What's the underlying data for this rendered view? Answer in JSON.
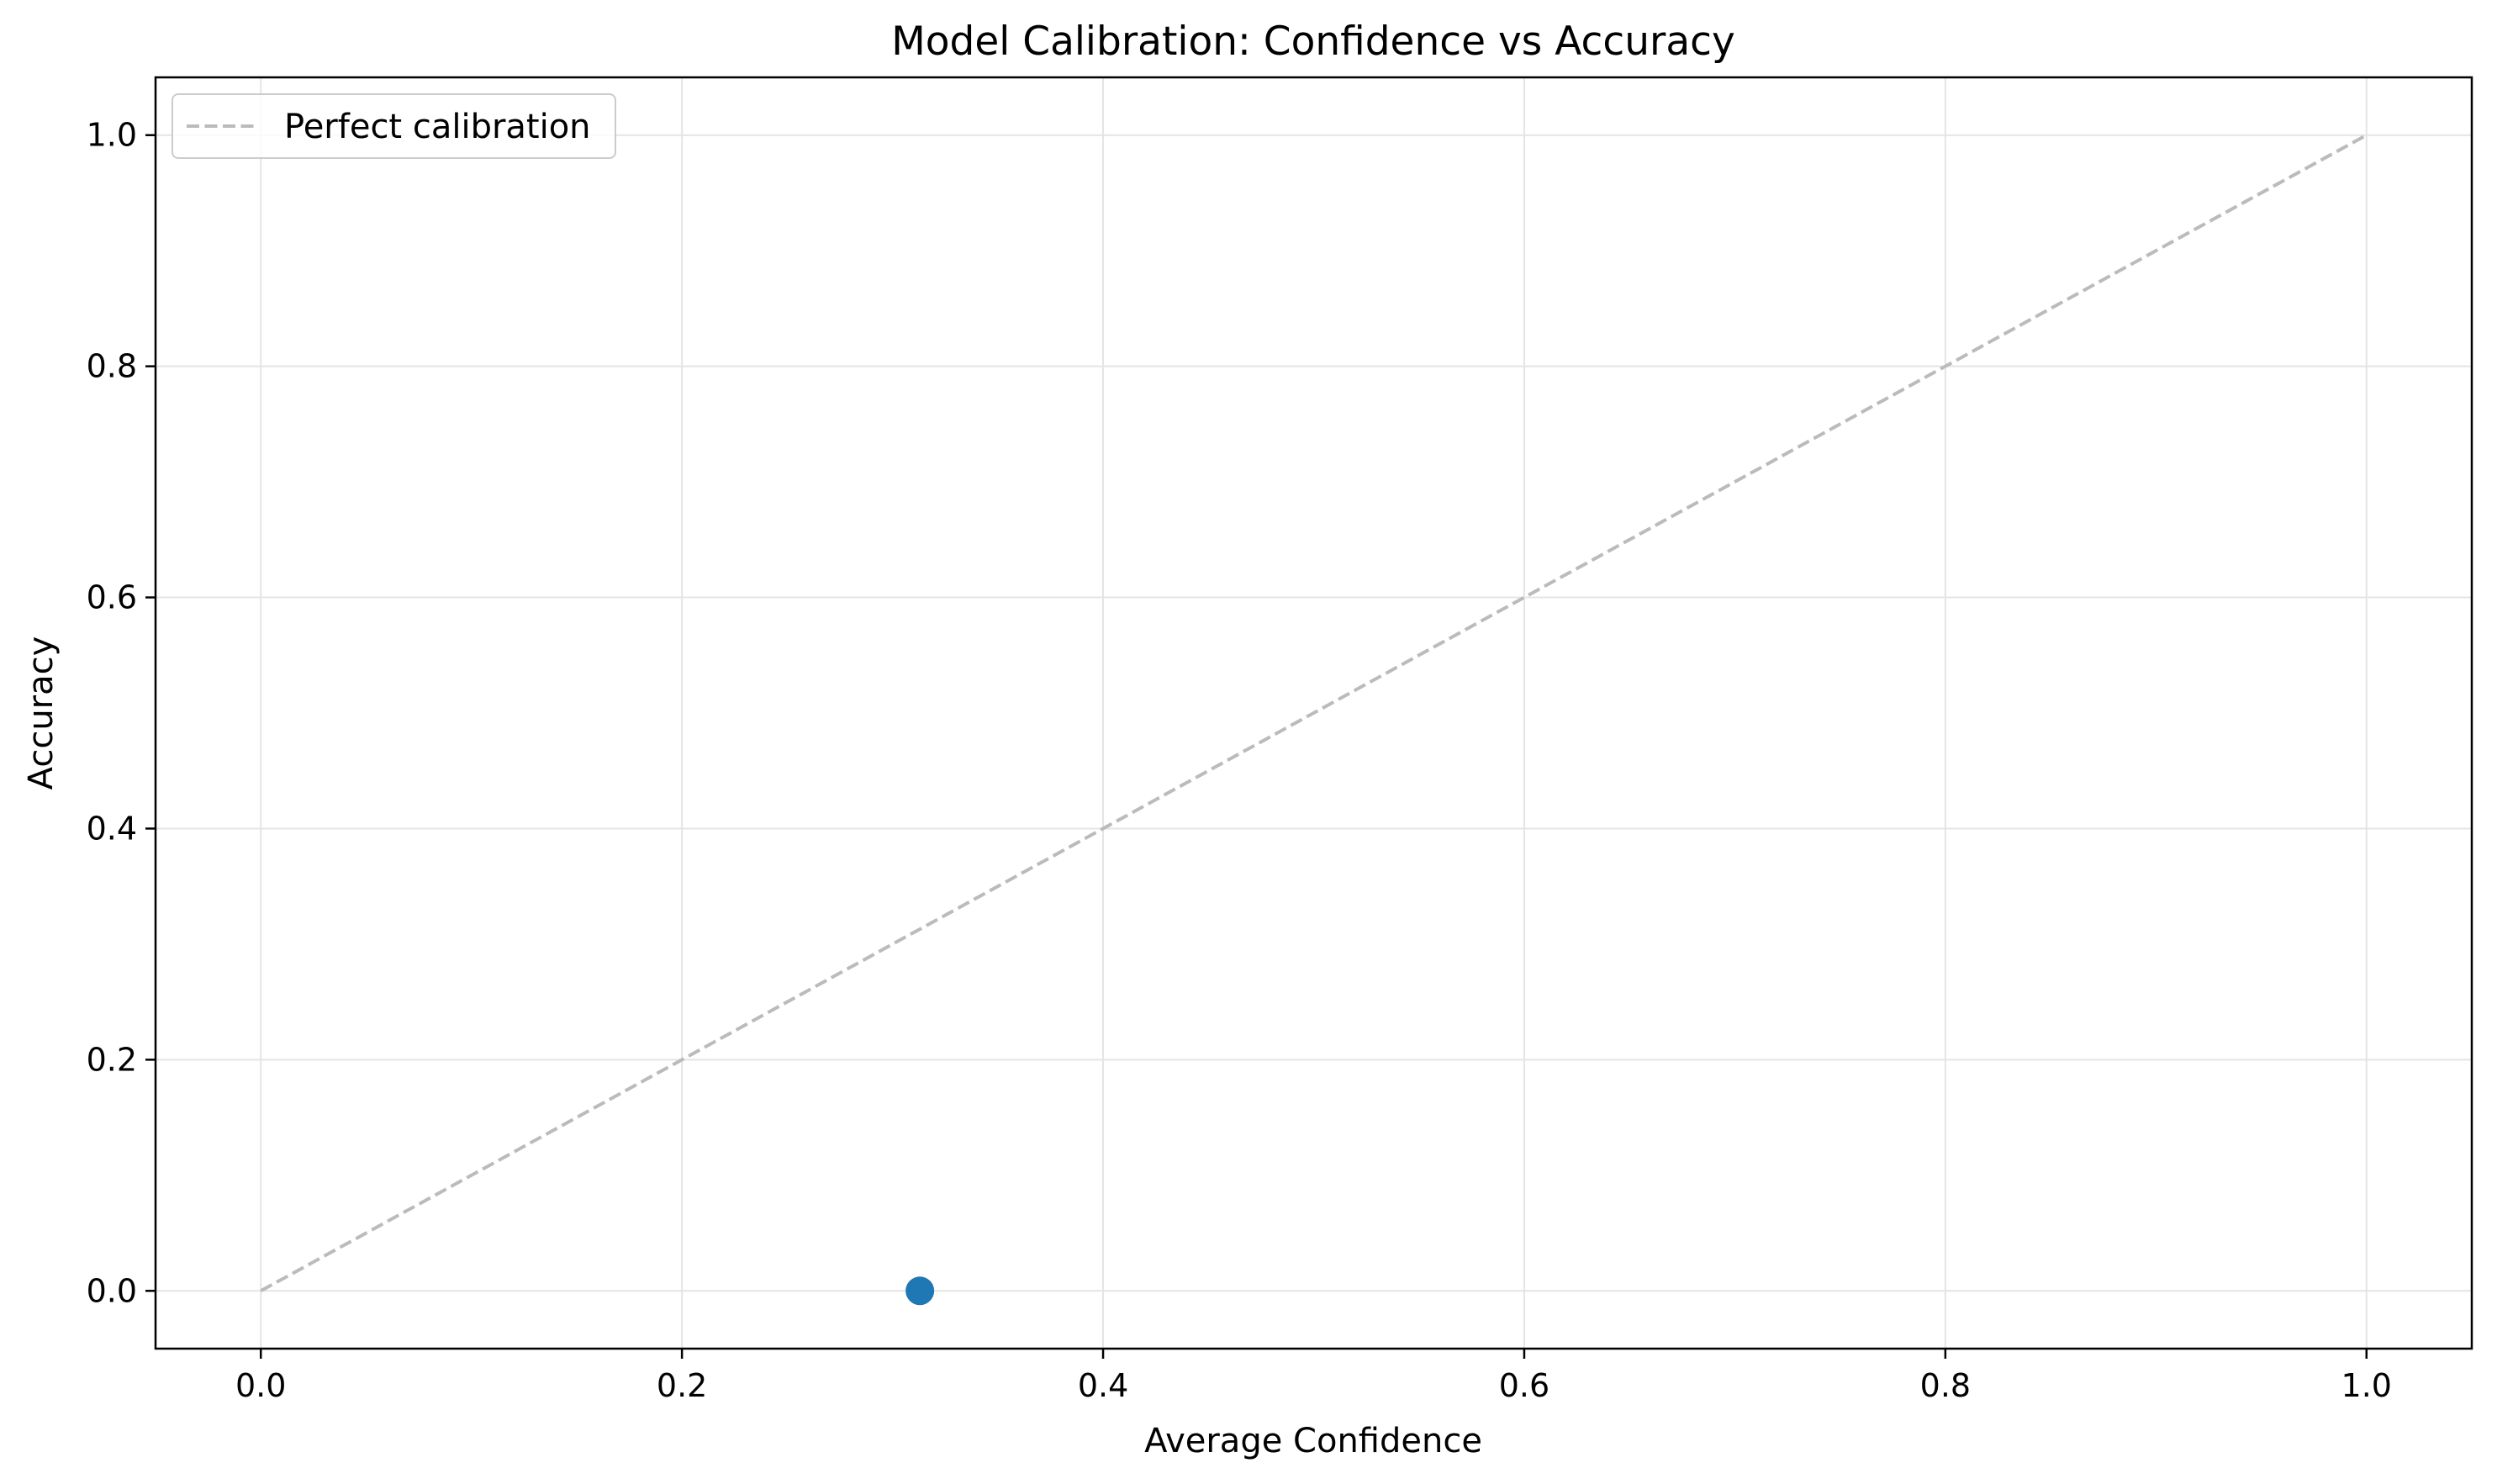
{
  "chart_data": {
    "type": "scatter",
    "title": "Model Calibration: Confidence vs Accuracy",
    "xlabel": "Average Confidence",
    "ylabel": "Accuracy",
    "xlim": [
      -0.05,
      1.05
    ],
    "ylim": [
      -0.05,
      1.05
    ],
    "xticks": [
      0.0,
      0.2,
      0.4,
      0.6,
      0.8,
      1.0
    ],
    "yticks": [
      0.0,
      0.2,
      0.4,
      0.6,
      0.8,
      1.0
    ],
    "xtick_labels": [
      "0.0",
      "0.2",
      "0.4",
      "0.6",
      "0.8",
      "1.0"
    ],
    "ytick_labels": [
      "0.0",
      "0.2",
      "0.4",
      "0.6",
      "0.8",
      "1.0"
    ],
    "grid": true,
    "legend_position": "upper-left",
    "series": [
      {
        "name": "Perfect calibration",
        "kind": "line",
        "style": "dashed",
        "color": "#bbbbbb",
        "x": [
          0.0,
          1.0
        ],
        "y": [
          0.0,
          1.0
        ]
      },
      {
        "kind": "scatter",
        "color": "#1f77b4",
        "x": [
          0.313
        ],
        "y": [
          0.0
        ]
      }
    ]
  }
}
